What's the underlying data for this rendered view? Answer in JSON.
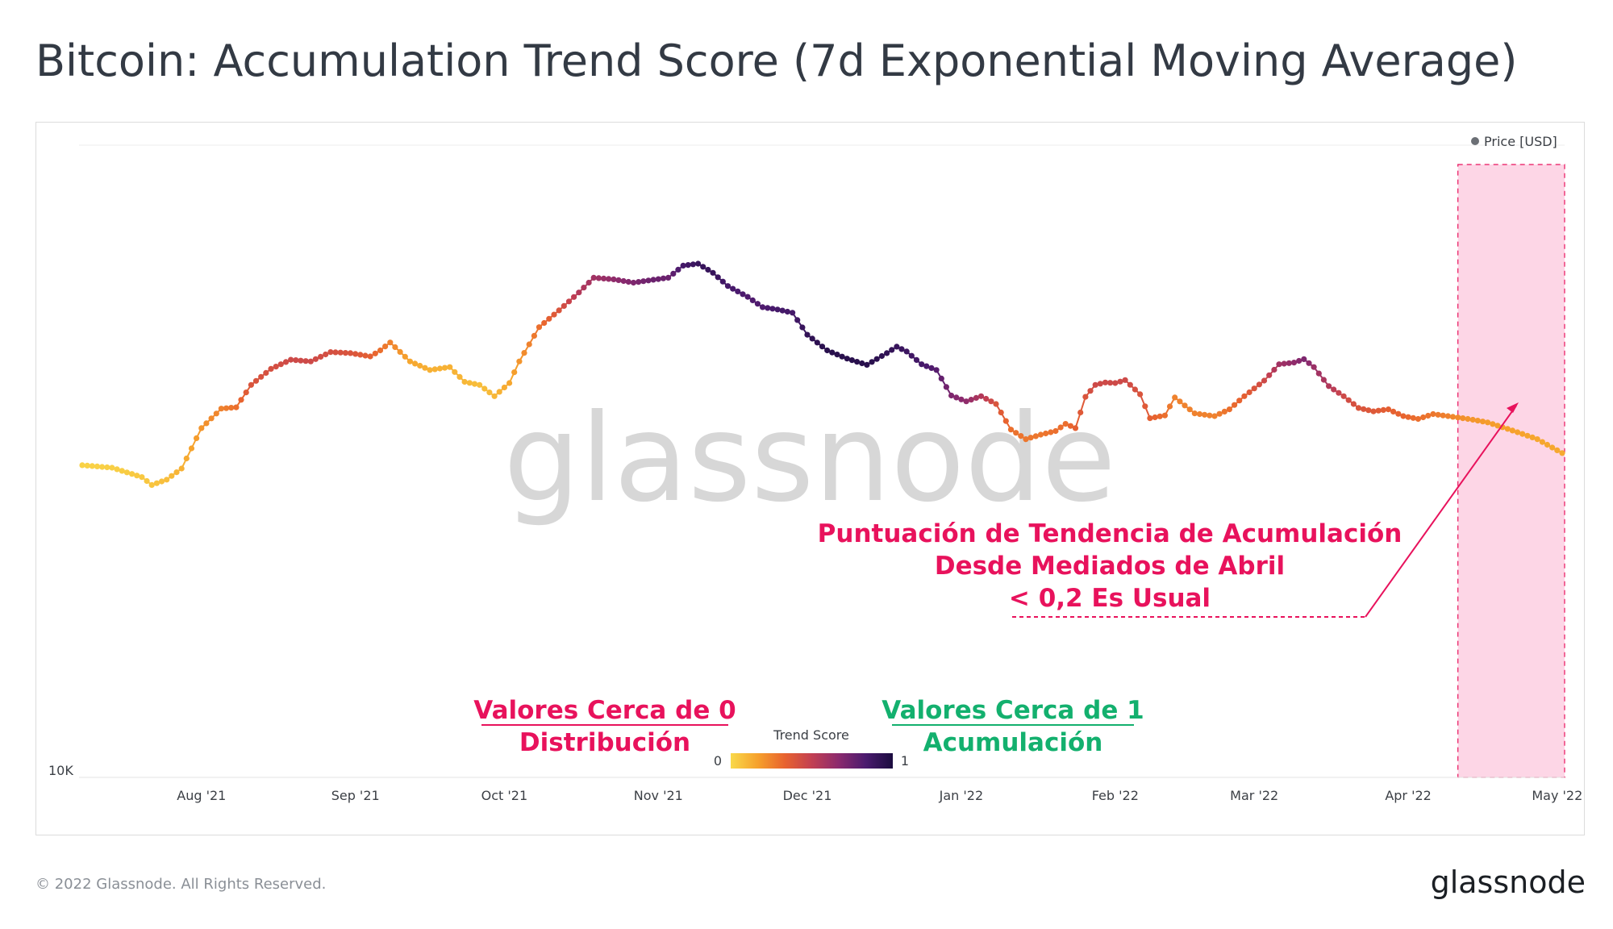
{
  "title": "Bitcoin: Accumulation Trend Score (7d Exponential Moving Average)",
  "footer": "© 2022 Glassnode. All Rights Reserved.",
  "logo": "glassnode",
  "watermark": "glassnode",
  "legend": {
    "series_label": "Price [USD]",
    "dot_color": "#6b6f75"
  },
  "colorbar": {
    "title": "Trend Score",
    "min_label": "0",
    "max_label": "1",
    "stops": [
      "#f9d94a",
      "#f6a12c",
      "#e8632f",
      "#c23f52",
      "#8b2a6e",
      "#4a1a6e",
      "#1b0c3f"
    ]
  },
  "annotations": {
    "note_line1": "Puntuación de Tendencia de Acumulación",
    "note_line2": "Desde Mediados de Abril",
    "note_line3": "< 0,2 Es Usual",
    "low_line1": "Valores Cerca de 0",
    "low_line2": "Distribución",
    "high_line1": "Valores Cerca de 1",
    "high_line2": "Acumulación",
    "accent_red": "#e8125c",
    "accent_green": "#13b06e",
    "highlight_fill": "#fdd6e6"
  },
  "chart_data": {
    "type": "scatter",
    "y_axis": {
      "label_shown": "10K",
      "scale": "log"
    },
    "x_ticks": [
      "Aug '21",
      "Sep '21",
      "Oct '21",
      "Nov '21",
      "Dec '21",
      "Jan '22",
      "Feb '22",
      "Mar '22",
      "Apr '22",
      "May '22"
    ],
    "x_range_days": [
      0,
      298
    ],
    "highlight_range_days": [
      277,
      298
    ],
    "series": [
      {
        "name": "Price [USD]",
        "points": [
          [
            0,
            32200,
            0.02
          ],
          [
            6,
            31900,
            0.03
          ],
          [
            12,
            30800,
            0.05
          ],
          [
            14,
            29900,
            0.06
          ],
          [
            17,
            30500,
            0.08
          ],
          [
            20,
            31800,
            0.12
          ],
          [
            24,
            37000,
            0.2
          ],
          [
            28,
            39800,
            0.25
          ],
          [
            31,
            40000,
            0.3
          ],
          [
            34,
            43500,
            0.4
          ],
          [
            38,
            46200,
            0.42
          ],
          [
            42,
            47800,
            0.45
          ],
          [
            46,
            47500,
            0.45
          ],
          [
            50,
            49200,
            0.42
          ],
          [
            54,
            49000,
            0.4
          ],
          [
            58,
            48400,
            0.35
          ],
          [
            60,
            49500,
            0.3
          ],
          [
            62,
            51000,
            0.25
          ],
          [
            66,
            47500,
            0.15
          ],
          [
            70,
            46000,
            0.12
          ],
          [
            74,
            46500,
            0.12
          ],
          [
            77,
            44000,
            0.1
          ],
          [
            80,
            43500,
            0.08
          ],
          [
            83,
            41700,
            0.1
          ],
          [
            86,
            43800,
            0.15
          ],
          [
            88,
            47500,
            0.2
          ],
          [
            92,
            54000,
            0.3
          ],
          [
            96,
            57500,
            0.4
          ],
          [
            100,
            61500,
            0.55
          ],
          [
            103,
            65000,
            0.6
          ],
          [
            107,
            64600,
            0.65
          ],
          [
            111,
            63800,
            0.7
          ],
          [
            115,
            64500,
            0.75
          ],
          [
            118,
            65000,
            0.75
          ],
          [
            121,
            68000,
            0.85
          ],
          [
            124,
            68500,
            0.9
          ],
          [
            127,
            66200,
            0.9
          ],
          [
            130,
            63000,
            0.85
          ],
          [
            134,
            60500,
            0.82
          ],
          [
            137,
            58200,
            0.82
          ],
          [
            140,
            57700,
            0.85
          ],
          [
            143,
            57000,
            0.85
          ],
          [
            146,
            52500,
            0.92
          ],
          [
            150,
            49500,
            0.95
          ],
          [
            154,
            48000,
            0.95
          ],
          [
            158,
            46900,
            0.95
          ],
          [
            162,
            49000,
            0.92
          ],
          [
            164,
            50200,
            0.9
          ],
          [
            166,
            49300,
            0.88
          ],
          [
            169,
            47000,
            0.85
          ],
          [
            172,
            46000,
            0.8
          ],
          [
            175,
            41800,
            0.7
          ],
          [
            178,
            40900,
            0.65
          ],
          [
            181,
            41700,
            0.55
          ],
          [
            184,
            40500,
            0.4
          ],
          [
            187,
            36800,
            0.3
          ],
          [
            190,
            35500,
            0.28
          ],
          [
            193,
            36100,
            0.28
          ],
          [
            196,
            36600,
            0.3
          ],
          [
            198,
            37600,
            0.3
          ],
          [
            200,
            37000,
            0.35
          ],
          [
            202,
            41600,
            0.4
          ],
          [
            204,
            43500,
            0.45
          ],
          [
            206,
            43900,
            0.45
          ],
          [
            208,
            43800,
            0.45
          ],
          [
            210,
            44300,
            0.45
          ],
          [
            213,
            42000,
            0.4
          ],
          [
            215,
            38400,
            0.35
          ],
          [
            218,
            38800,
            0.3
          ],
          [
            220,
            41500,
            0.25
          ],
          [
            224,
            39100,
            0.25
          ],
          [
            228,
            38700,
            0.25
          ],
          [
            231,
            39700,
            0.3
          ],
          [
            234,
            41700,
            0.35
          ],
          [
            238,
            44200,
            0.45
          ],
          [
            241,
            47000,
            0.6
          ],
          [
            244,
            47300,
            0.65
          ],
          [
            246,
            47900,
            0.7
          ],
          [
            248,
            46500,
            0.62
          ],
          [
            251,
            43300,
            0.55
          ],
          [
            254,
            41700,
            0.45
          ],
          [
            257,
            39900,
            0.4
          ],
          [
            260,
            39400,
            0.38
          ],
          [
            263,
            39700,
            0.35
          ],
          [
            266,
            38700,
            0.33
          ],
          [
            269,
            38300,
            0.3
          ],
          [
            272,
            39000,
            0.28
          ],
          [
            275,
            38700,
            0.25
          ],
          [
            279,
            38300,
            0.2
          ],
          [
            283,
            37800,
            0.18
          ],
          [
            287,
            36900,
            0.17
          ],
          [
            290,
            36200,
            0.16
          ],
          [
            293,
            35500,
            0.15
          ],
          [
            296,
            34400,
            0.15
          ],
          [
            298,
            33700,
            0.14
          ]
        ]
      }
    ]
  }
}
